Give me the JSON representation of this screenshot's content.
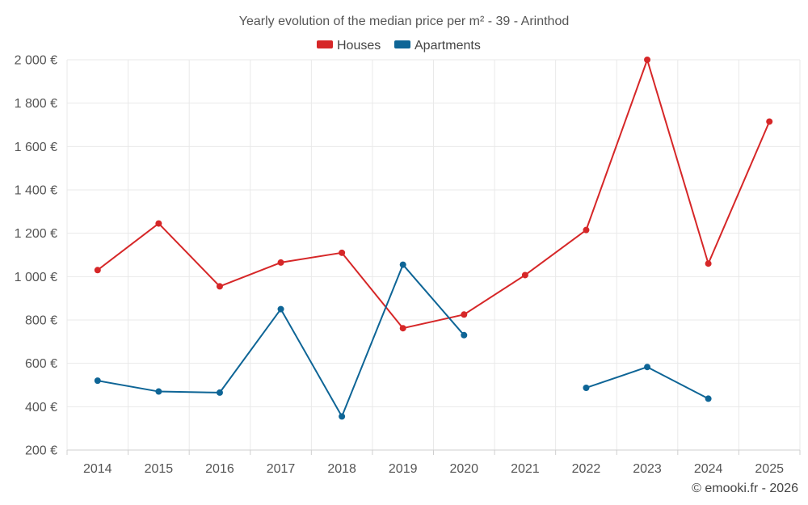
{
  "chart_data": {
    "type": "line",
    "title": "Yearly evolution of the median price per m² - 39 - Arinthod",
    "categories": [
      "2014",
      "2015",
      "2016",
      "2017",
      "2018",
      "2019",
      "2020",
      "2021",
      "2022",
      "2023",
      "2024",
      "2025"
    ],
    "y_ticks": [
      "200 €",
      "400 €",
      "600 €",
      "800 €",
      "1 000 €",
      "1 200 €",
      "1 400 €",
      "1 600 €",
      "1 800 €",
      "2 000 €"
    ],
    "y_tick_values": [
      200,
      400,
      600,
      800,
      1000,
      1200,
      1400,
      1600,
      1800,
      2000
    ],
    "ylim": [
      200,
      2000
    ],
    "grid": true,
    "legend_position": "top-center",
    "series": [
      {
        "name": "Houses",
        "color": "#d62728",
        "values": [
          1030,
          1245,
          955,
          1065,
          1110,
          762,
          825,
          1007,
          1215,
          2000,
          1060,
          1715
        ]
      },
      {
        "name": "Apartments",
        "color": "#0e6596",
        "values": [
          520,
          470,
          465,
          850,
          355,
          1055,
          730,
          null,
          487,
          583,
          437,
          null
        ]
      }
    ],
    "credit": "© emooki.fr - 2026"
  }
}
